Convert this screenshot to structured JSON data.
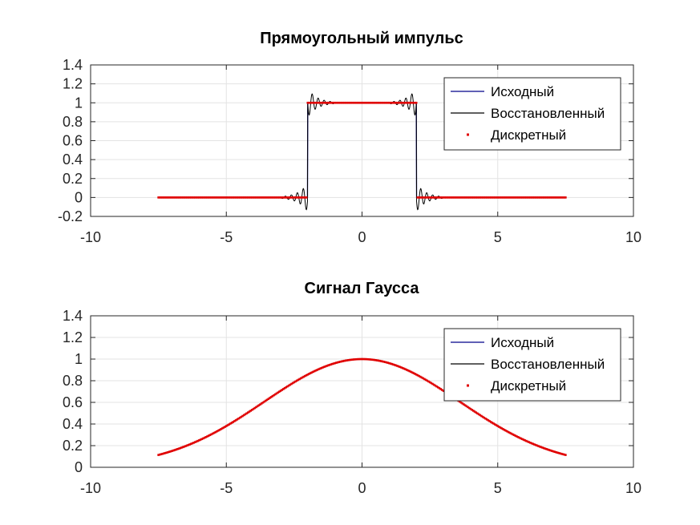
{
  "chart_data": [
    {
      "type": "line",
      "title": "Прямоугольный импульс",
      "xlabel": "",
      "ylabel": "",
      "xlim": [
        -10,
        10
      ],
      "ylim": [
        -0.2,
        1.4
      ],
      "xticks": [
        "-10",
        "-5",
        "0",
        "5",
        "10"
      ],
      "yticks": [
        "-0.2",
        "0",
        "0.2",
        "0.4",
        "0.6",
        "0.8",
        "1",
        "1.2",
        "1.4"
      ],
      "grid": true,
      "legend_position": "top-right",
      "signal": {
        "kind": "rect",
        "x_start": -7.5,
        "x_end": 7.5,
        "low": 0,
        "high": 1,
        "edge_left": -2,
        "edge_right": 2
      },
      "series": [
        {
          "name": "Исходный",
          "color": "#00008b",
          "style": "line"
        },
        {
          "name": "Восстановленный",
          "color": "#000000",
          "style": "line",
          "ringing": {
            "overshoot_peak": 1.15,
            "undershoot_peak": -0.13
          }
        },
        {
          "name": "Дискретный",
          "color": "#e00000",
          "style": "points",
          "sample_step": 0.05
        }
      ]
    },
    {
      "type": "line",
      "title": "Сигнал Гаусса",
      "xlabel": "",
      "ylabel": "",
      "xlim": [
        -10,
        10
      ],
      "ylim": [
        0,
        1.4
      ],
      "xticks": [
        "-10",
        "-5",
        "0",
        "5",
        "10"
      ],
      "yticks": [
        "0",
        "0.2",
        "0.4",
        "0.6",
        "0.8",
        "1",
        "1.2",
        "1.4"
      ],
      "grid": true,
      "legend_position": "top-right",
      "signal": {
        "kind": "gauss",
        "x_start": -7.5,
        "x_end": 7.5,
        "peak": 1,
        "sigma": 3.6
      },
      "series": [
        {
          "name": "Исходный",
          "color": "#00008b",
          "style": "line"
        },
        {
          "name": "Восстановленный",
          "color": "#000000",
          "style": "line"
        },
        {
          "name": "Дискретный",
          "color": "#e00000",
          "style": "points",
          "sample_step": 0.05
        }
      ]
    }
  ]
}
